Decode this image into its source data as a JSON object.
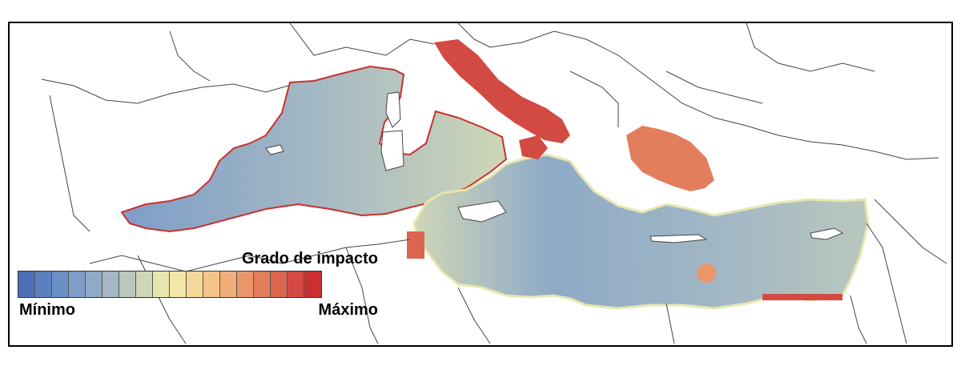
{
  "legend": {
    "title": "Grado de impacto",
    "min_label": "Mínimo",
    "max_label": "Máximo",
    "colors": [
      "#4a6fb5",
      "#5b7fbf",
      "#6a8ec6",
      "#7e9dc8",
      "#8eaac7",
      "#a3b8c4",
      "#b9c7bd",
      "#cfd6b6",
      "#e6e6b0",
      "#f3e6a6",
      "#f6d79a",
      "#f5c48a",
      "#f1ae79",
      "#eb966a",
      "#e37e5c",
      "#db654f",
      "#d34a43",
      "#c9302f"
    ]
  },
  "map": {
    "land_color": "#ffffff",
    "border_color": "#444444",
    "impact_low_color": "#8eaac7",
    "impact_high_color": "#d34a43"
  }
}
